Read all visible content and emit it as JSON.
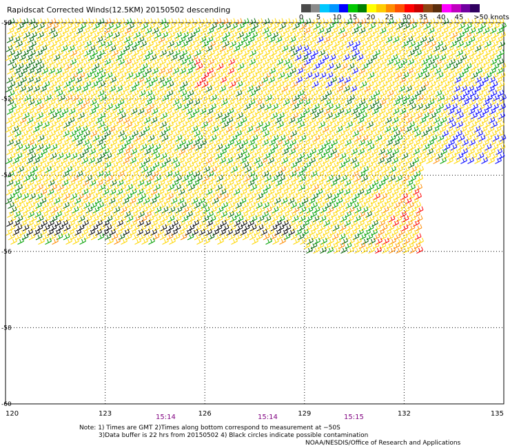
{
  "title": "Rapidscat Corrected Winds(12.5KM) 20150502 descending",
  "legend": {
    "labels": [
      "0",
      "5",
      "10",
      "15",
      "20",
      "25",
      "30",
      "35",
      "40",
      "45",
      ">50 knots"
    ],
    "colors": [
      "#4a4a4a",
      "#8a8a8a",
      "#00c8ff",
      "#0096ff",
      "#0000ff",
      "#00c800",
      "#008000",
      "#ffff00",
      "#ffcc00",
      "#ff8c00",
      "#ff5000",
      "#ff0000",
      "#c80000",
      "#8b4513",
      "#5a2d0c",
      "#ff00ff",
      "#c000c0",
      "#7000a0",
      "#300060"
    ]
  },
  "axes": {
    "lat_labels": [
      "-50",
      "-52",
      "-54",
      "-56",
      "-58",
      "-60"
    ],
    "lon_labels": [
      "120",
      "123",
      "126",
      "129",
      "132",
      "135"
    ]
  },
  "times": [
    "15:14",
    "15:14",
    "15:15"
  ],
  "notes": {
    "line1": "Note: 1) Times are GMT 2)Times along bottom correspond to measurement at −50S",
    "line2": "3)Data buffer is 22 hrs from 20150502 4) Black circles indicate possible contamination"
  },
  "credit": "NOAA/NESDIS/Office of Research and Applications",
  "wind_colors": {
    "calm": "#000000",
    "light": "#0000ff",
    "moderate": "#00a000",
    "dark_green": "#006400",
    "fresh": "#ffd700",
    "strong": "#ff8c00",
    "gale": "#ff0000"
  }
}
